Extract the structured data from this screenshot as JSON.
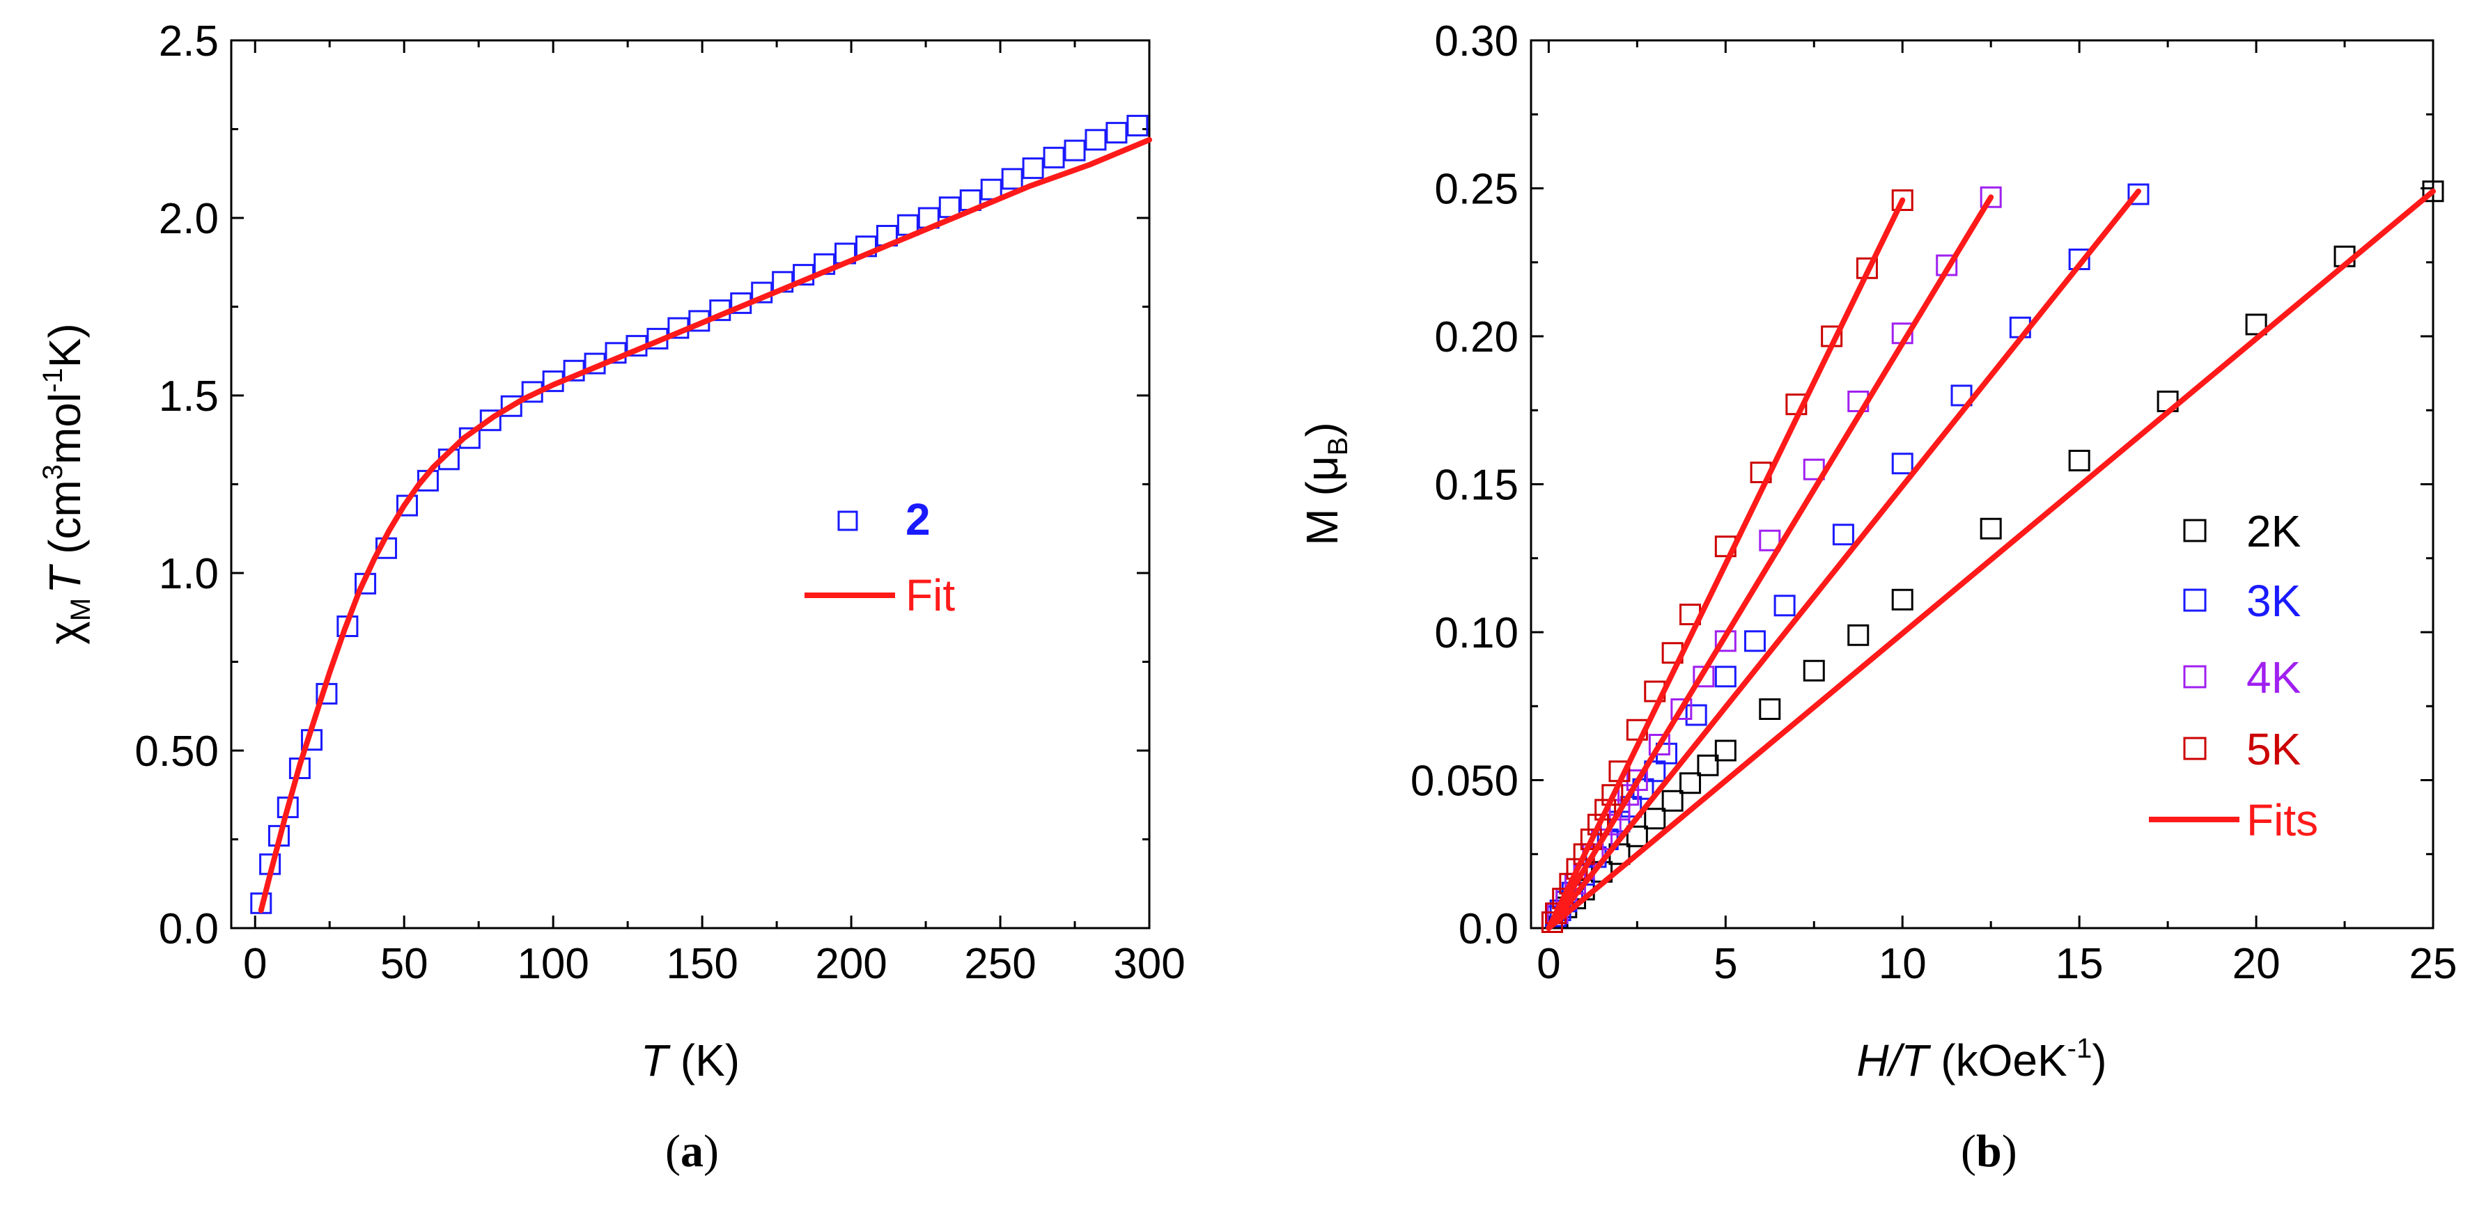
{
  "chart_data": [
    {
      "panel": "(a)",
      "panel_letter": "a",
      "type": "scatter",
      "title": "",
      "xlabel": {
        "italic": "T",
        "rest": " (K)"
      },
      "ylabel": {
        "chi": "χ",
        "sub": "M",
        "italicT": "T",
        "pre": " (cm",
        "sup3": "3",
        "mid": "mol",
        "supneg1": "-1",
        "post": "K)"
      },
      "xlim": [
        -8,
        300
      ],
      "ylim": [
        0,
        2.5
      ],
      "xticks": [
        0,
        50,
        100,
        150,
        200,
        250,
        300
      ],
      "xtick_labels": [
        "0",
        "50",
        "100",
        "150",
        "200",
        "250",
        "300"
      ],
      "yticks": [
        0,
        0.5,
        1.0,
        1.5,
        2.0,
        2.5
      ],
      "ytick_labels": [
        "0.0",
        "0.50",
        "1.0",
        "1.5",
        "2.0",
        "2.5"
      ],
      "series": [
        {
          "name": "2",
          "kind": "markers",
          "color": "#1a1aff",
          "x": [
            2,
            5,
            8,
            11,
            15,
            19,
            24,
            31,
            37,
            44,
            51,
            58,
            65,
            72,
            79,
            86,
            93,
            100,
            107,
            114,
            121,
            128,
            135,
            142,
            149,
            156,
            163,
            170,
            177,
            184,
            191,
            198,
            205,
            212,
            219,
            226,
            233,
            240,
            247,
            254,
            261,
            268,
            275,
            282,
            289,
            296
          ],
          "y": [
            0.07,
            0.18,
            0.26,
            0.34,
            0.45,
            0.53,
            0.66,
            0.85,
            0.97,
            1.07,
            1.19,
            1.26,
            1.32,
            1.38,
            1.43,
            1.47,
            1.51,
            1.54,
            1.57,
            1.59,
            1.62,
            1.64,
            1.66,
            1.69,
            1.71,
            1.74,
            1.76,
            1.79,
            1.82,
            1.84,
            1.87,
            1.9,
            1.92,
            1.95,
            1.98,
            2.0,
            2.03,
            2.05,
            2.08,
            2.11,
            2.14,
            2.17,
            2.19,
            2.22,
            2.24,
            2.26
          ]
        },
        {
          "name": "Fit",
          "kind": "line",
          "color": "#ff1a1a",
          "x": [
            2,
            5,
            10,
            15,
            20,
            25,
            30,
            35,
            40,
            45,
            50,
            55,
            60,
            65,
            70,
            80,
            90,
            100,
            120,
            140,
            160,
            180,
            200,
            220,
            240,
            260,
            280,
            300
          ],
          "y": [
            0.05,
            0.15,
            0.31,
            0.46,
            0.59,
            0.72,
            0.84,
            0.95,
            1.04,
            1.12,
            1.19,
            1.25,
            1.3,
            1.34,
            1.38,
            1.44,
            1.49,
            1.53,
            1.6,
            1.67,
            1.74,
            1.81,
            1.88,
            1.95,
            2.02,
            2.09,
            2.15,
            2.22
          ]
        }
      ],
      "legend": {
        "position": "center-right",
        "entries": [
          "2",
          "Fit"
        ]
      }
    },
    {
      "panel": "(b)",
      "panel_letter": "b",
      "type": "scatter",
      "title": "",
      "xlabel": {
        "italic": "H/T",
        "rest": " (kOeK",
        "sup": "-1",
        "post": ")"
      },
      "ylabel": {
        "pre": "M (μ",
        "sub": "B",
        "post": ")"
      },
      "xlim": [
        -0.5,
        25
      ],
      "ylim": [
        0,
        0.3
      ],
      "xticks": [
        0,
        5,
        10,
        15,
        20,
        25
      ],
      "xtick_labels": [
        "0",
        "5",
        "10",
        "15",
        "20",
        "25"
      ],
      "yticks": [
        0,
        0.05,
        0.1,
        0.15,
        0.2,
        0.25,
        0.3
      ],
      "ytick_labels": [
        "0.0",
        "0.050",
        "0.10",
        "0.15",
        "0.20",
        "0.25",
        "0.30"
      ],
      "series": [
        {
          "name": "2K",
          "kind": "markers",
          "color": "#000000",
          "x": [
            0.1,
            0.25,
            0.5,
            0.75,
            1.0,
            1.5,
            2.0,
            2.5,
            3.0,
            3.5,
            4.0,
            4.5,
            5.0,
            6.25,
            7.5,
            8.75,
            10.0,
            12.5,
            15.0,
            17.5,
            20.0,
            22.5,
            25.0
          ],
          "y": [
            0.002,
            0.004,
            0.007,
            0.01,
            0.013,
            0.019,
            0.025,
            0.031,
            0.037,
            0.043,
            0.049,
            0.055,
            0.06,
            0.074,
            0.087,
            0.099,
            0.111,
            0.135,
            0.158,
            0.178,
            0.204,
            0.227,
            0.249
          ]
        },
        {
          "name": "3K",
          "kind": "markers",
          "color": "#1a1aff",
          "x": [
            0.1,
            0.2,
            0.33,
            0.5,
            0.67,
            1.0,
            1.33,
            1.67,
            2.0,
            2.33,
            2.67,
            3.0,
            3.33,
            4.17,
            5.0,
            5.83,
            6.67,
            8.33,
            10.0,
            11.67,
            13.33,
            15.0,
            16.67
          ],
          "y": [
            0.002,
            0.004,
            0.006,
            0.009,
            0.012,
            0.018,
            0.024,
            0.03,
            0.036,
            0.041,
            0.047,
            0.053,
            0.059,
            0.072,
            0.085,
            0.097,
            0.109,
            0.133,
            0.157,
            0.18,
            0.203,
            0.226,
            0.248
          ]
        },
        {
          "name": "4K",
          "kind": "markers",
          "color": "#a020f0",
          "x": [
            0.1,
            0.25,
            0.5,
            0.75,
            1.0,
            1.25,
            1.5,
            1.75,
            2.0,
            2.25,
            2.5,
            3.13,
            3.75,
            4.38,
            5.0,
            6.25,
            7.5,
            8.75,
            10.0,
            11.25,
            12.5
          ],
          "y": [
            0.002,
            0.005,
            0.01,
            0.015,
            0.02,
            0.025,
            0.03,
            0.035,
            0.04,
            0.045,
            0.05,
            0.062,
            0.074,
            0.085,
            0.097,
            0.131,
            0.155,
            0.178,
            0.201,
            0.224,
            0.247
          ]
        },
        {
          "name": "5K",
          "kind": "markers",
          "color": "#cc0000",
          "x": [
            0.1,
            0.2,
            0.4,
            0.6,
            0.8,
            1.0,
            1.2,
            1.4,
            1.6,
            1.8,
            2.0,
            2.5,
            3.0,
            3.5,
            4.0,
            5.0,
            6.0,
            7.0,
            8.0,
            9.0,
            10.0
          ],
          "y": [
            0.002,
            0.005,
            0.01,
            0.015,
            0.02,
            0.025,
            0.03,
            0.035,
            0.04,
            0.045,
            0.053,
            0.067,
            0.08,
            0.093,
            0.106,
            0.129,
            0.154,
            0.177,
            0.2,
            0.223,
            0.246
          ]
        },
        {
          "name": "Fit 2K",
          "kind": "line",
          "color": "#ff1a1a",
          "x": [
            0,
            25.0
          ],
          "y": [
            0,
            0.249
          ]
        },
        {
          "name": "Fit 3K",
          "kind": "line",
          "color": "#ff1a1a",
          "x": [
            0,
            16.67
          ],
          "y": [
            0,
            0.249
          ]
        },
        {
          "name": "Fit 4K",
          "kind": "line",
          "color": "#ff1a1a",
          "x": [
            0,
            12.5
          ],
          "y": [
            0,
            0.247
          ]
        },
        {
          "name": "Fit 5K",
          "kind": "line",
          "color": "#ff1a1a",
          "x": [
            0,
            10.0
          ],
          "y": [
            0,
            0.246
          ]
        }
      ],
      "legend": {
        "position": "center-right",
        "entries": [
          {
            "label": "2K",
            "color": "#000000"
          },
          {
            "label": "3K",
            "color": "#1a1aff"
          },
          {
            "label": "4K",
            "color": "#a020f0"
          },
          {
            "label": "5K",
            "color": "#cc0000"
          },
          {
            "label": "Fits",
            "color": "#ff1a1a"
          }
        ]
      }
    }
  ]
}
